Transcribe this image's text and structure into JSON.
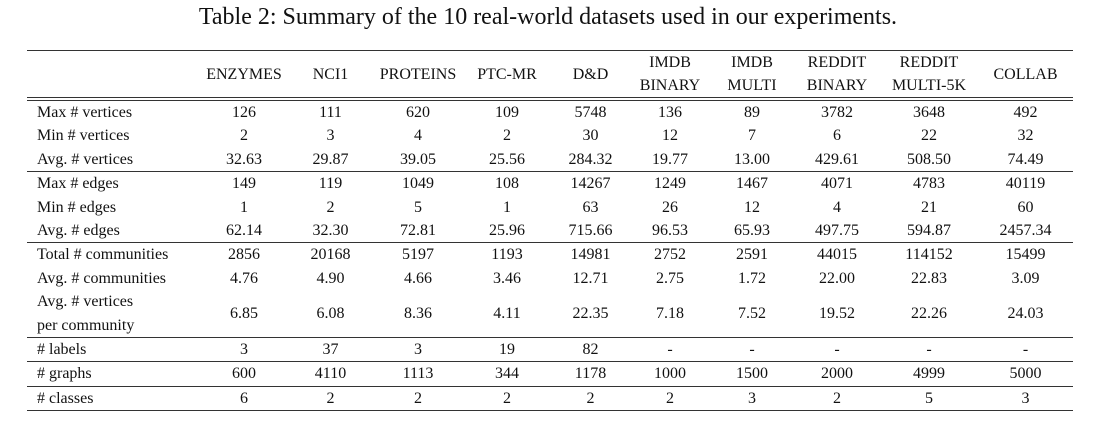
{
  "table": {
    "caption": "Table 2: Summary of the 10 real-world datasets used in our experiments.",
    "header": [
      "ENZYMES",
      "NCI1",
      "PROTEINS",
      "PTC-MR",
      "D&D",
      [
        "IMDB",
        "BINARY"
      ],
      [
        "IMDB",
        "MULTI"
      ],
      [
        "REDDIT",
        "BINARY"
      ],
      [
        "REDDIT",
        "MULTI-5K"
      ],
      "COLLAB"
    ],
    "groups": [
      [
        {
          "label": "Max # vertices",
          "values": [
            "126",
            "111",
            "620",
            "109",
            "5748",
            "136",
            "89",
            "3782",
            "3648",
            "492"
          ]
        },
        {
          "label": "Min # vertices",
          "values": [
            "2",
            "3",
            "4",
            "2",
            "30",
            "12",
            "7",
            "6",
            "22",
            "32"
          ]
        },
        {
          "label": "Avg. # vertices",
          "values": [
            "32.63",
            "29.87",
            "39.05",
            "25.56",
            "284.32",
            "19.77",
            "13.00",
            "429.61",
            "508.50",
            "74.49"
          ]
        }
      ],
      [
        {
          "label": "Max # edges",
          "values": [
            "149",
            "119",
            "1049",
            "108",
            "14267",
            "1249",
            "1467",
            "4071",
            "4783",
            "40119"
          ]
        },
        {
          "label": "Min # edges",
          "values": [
            "1",
            "2",
            "5",
            "1",
            "63",
            "26",
            "12",
            "4",
            "21",
            "60"
          ]
        },
        {
          "label": "Avg. # edges",
          "values": [
            "62.14",
            "32.30",
            "72.81",
            "25.96",
            "715.66",
            "96.53",
            "65.93",
            "497.75",
            "594.87",
            "2457.34"
          ]
        }
      ],
      [
        {
          "label": "Total # communities",
          "values": [
            "2856",
            "20168",
            "5197",
            "1193",
            "14981",
            "2752",
            "2591",
            "44015",
            "114152",
            "15499"
          ]
        },
        {
          "label": "Avg. # communities",
          "values": [
            "4.76",
            "4.90",
            "4.66",
            "3.46",
            "12.71",
            "2.75",
            "1.72",
            "22.00",
            "22.83",
            "3.09"
          ]
        },
        {
          "label": [
            "Avg. # vertices",
            "per community"
          ],
          "values": [
            "6.85",
            "6.08",
            "8.36",
            "4.11",
            "22.35",
            "7.18",
            "7.52",
            "19.52",
            "22.26",
            "24.03"
          ]
        }
      ],
      [
        {
          "label": "# labels",
          "values": [
            "3",
            "37",
            "3",
            "19",
            "82",
            "-",
            "-",
            "-",
            "-",
            "-"
          ]
        }
      ],
      [
        {
          "label": "# graphs",
          "values": [
            "600",
            "4110",
            "1113",
            "344",
            "1178",
            "1000",
            "1500",
            "2000",
            "4999",
            "5000"
          ]
        }
      ],
      [
        {
          "label": "# classes",
          "values": [
            "6",
            "2",
            "2",
            "2",
            "2",
            "2",
            "3",
            "2",
            "5",
            "3"
          ]
        }
      ]
    ]
  }
}
